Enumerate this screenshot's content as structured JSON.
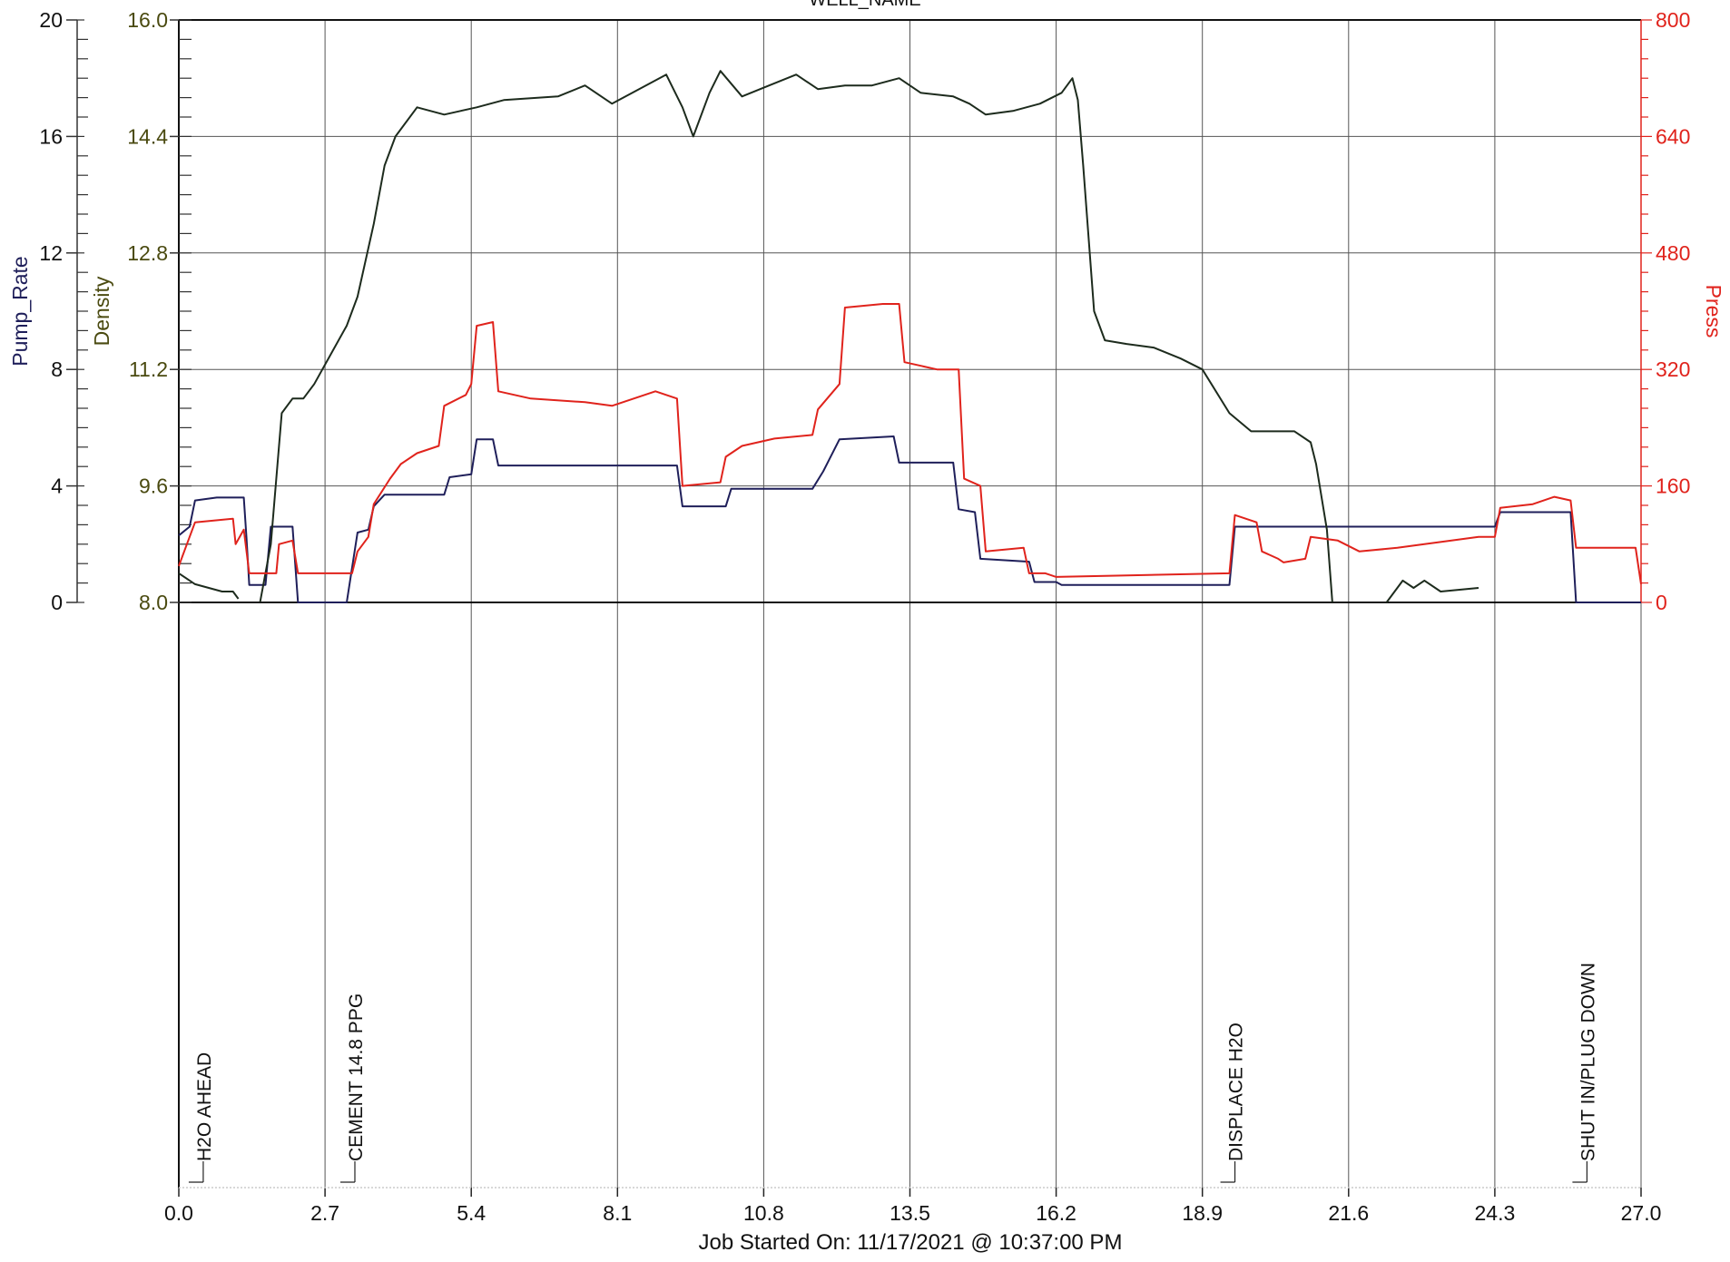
{
  "chart_data": {
    "type": "line",
    "title": "WELL_NAME",
    "xlabel": "Job Started On: 11/17/2021 @ 10:37:00 PM",
    "x_ticks": [
      "0.0",
      "2.7",
      "5.4",
      "8.1",
      "10.8",
      "13.5",
      "16.2",
      "18.9",
      "21.6",
      "24.3",
      "27.0"
    ],
    "xlim": [
      0,
      27
    ],
    "colors": {
      "pump_rate": "#1f1f5a",
      "density": "#1d2b1d",
      "press": "#e0231c",
      "density_axis": "#4a4a10"
    },
    "axes": {
      "pump_rate": {
        "label": "Pump_Rate",
        "ticks": [
          "0",
          "4",
          "8",
          "12",
          "16",
          "20"
        ],
        "ylim": [
          0,
          20
        ]
      },
      "density": {
        "label": "Density",
        "ticks": [
          "8.0",
          "9.6",
          "11.2",
          "12.8",
          "14.4",
          "16.0"
        ],
        "ylim": [
          8.0,
          16.0
        ]
      },
      "press": {
        "label": "Press",
        "ticks": [
          "0",
          "160",
          "320",
          "480",
          "640",
          "800"
        ],
        "ylim": [
          0,
          800
        ]
      }
    },
    "series": [
      {
        "name": "Pump_Rate",
        "axis": "pump_rate",
        "color": "#1f1f5a",
        "points": [
          [
            0,
            2.3
          ],
          [
            0.2,
            2.6
          ],
          [
            0.3,
            3.5
          ],
          [
            0.7,
            3.6
          ],
          [
            1.2,
            3.6
          ],
          [
            1.25,
            2.2
          ],
          [
            1.3,
            0.6
          ],
          [
            1.6,
            0.6
          ],
          [
            1.7,
            2.6
          ],
          [
            2.1,
            2.6
          ],
          [
            2.2,
            0
          ],
          [
            3.1,
            0
          ],
          [
            3.3,
            2.4
          ],
          [
            3.5,
            2.5
          ],
          [
            3.6,
            3.3
          ],
          [
            3.8,
            3.7
          ],
          [
            4.9,
            3.7
          ],
          [
            5.0,
            4.3
          ],
          [
            5.4,
            4.4
          ],
          [
            5.5,
            5.6
          ],
          [
            5.8,
            5.6
          ],
          [
            5.9,
            4.7
          ],
          [
            9.2,
            4.7
          ],
          [
            9.3,
            3.3
          ],
          [
            10.1,
            3.3
          ],
          [
            10.2,
            3.9
          ],
          [
            11.7,
            3.9
          ],
          [
            11.9,
            4.5
          ],
          [
            12.2,
            5.6
          ],
          [
            13.2,
            5.7
          ],
          [
            13.3,
            4.8
          ],
          [
            14.3,
            4.8
          ],
          [
            14.4,
            3.2
          ],
          [
            14.7,
            3.1
          ],
          [
            14.8,
            1.5
          ],
          [
            15.7,
            1.4
          ],
          [
            15.8,
            0.7
          ],
          [
            16.2,
            0.7
          ],
          [
            16.3,
            0.6
          ],
          [
            19.4,
            0.6
          ],
          [
            19.5,
            2.6
          ],
          [
            24.3,
            2.6
          ],
          [
            24.4,
            3.1
          ],
          [
            25.7,
            3.1
          ],
          [
            25.8,
            0
          ],
          [
            27.0,
            0
          ]
        ]
      },
      {
        "name": "Density",
        "axis": "density",
        "color": "#1d2b1d",
        "segments": [
          [
            [
              0,
              8.4
            ],
            [
              0.3,
              8.25
            ],
            [
              0.8,
              8.15
            ],
            [
              1.0,
              8.15
            ],
            [
              1.1,
              8.05
            ]
          ],
          [
            [
              1.5,
              8.0
            ],
            [
              1.7,
              8.8
            ],
            [
              1.9,
              10.6
            ],
            [
              2.1,
              10.8
            ],
            [
              2.3,
              10.8
            ],
            [
              2.5,
              11.0
            ],
            [
              2.8,
              11.4
            ],
            [
              3.1,
              11.8
            ],
            [
              3.3,
              12.2
            ],
            [
              3.6,
              13.2
            ],
            [
              3.8,
              14.0
            ],
            [
              4.0,
              14.4
            ],
            [
              4.4,
              14.8
            ],
            [
              4.9,
              14.7
            ],
            [
              5.2,
              14.75
            ],
            [
              5.5,
              14.8
            ],
            [
              6.0,
              14.9
            ],
            [
              7.0,
              14.95
            ],
            [
              7.5,
              15.1
            ],
            [
              8.0,
              14.85
            ],
            [
              9.0,
              15.25
            ],
            [
              9.3,
              14.8
            ],
            [
              9.5,
              14.4
            ],
            [
              9.8,
              15.0
            ],
            [
              10.0,
              15.3
            ],
            [
              10.4,
              14.95
            ],
            [
              10.9,
              15.1
            ],
            [
              11.4,
              15.25
            ],
            [
              11.8,
              15.05
            ],
            [
              12.3,
              15.1
            ],
            [
              12.8,
              15.1
            ],
            [
              13.3,
              15.2
            ],
            [
              13.7,
              15.0
            ],
            [
              14.3,
              14.95
            ],
            [
              14.6,
              14.85
            ],
            [
              14.9,
              14.7
            ],
            [
              15.4,
              14.75
            ],
            [
              15.9,
              14.85
            ],
            [
              16.3,
              15.0
            ],
            [
              16.5,
              15.2
            ],
            [
              16.6,
              14.9
            ],
            [
              16.7,
              14.0
            ],
            [
              16.9,
              12.0
            ],
            [
              17.1,
              11.6
            ],
            [
              17.5,
              11.55
            ],
            [
              18.0,
              11.5
            ],
            [
              18.5,
              11.35
            ],
            [
              18.9,
              11.2
            ],
            [
              19.4,
              10.6
            ],
            [
              19.8,
              10.35
            ],
            [
              20.3,
              10.35
            ],
            [
              20.6,
              10.35
            ],
            [
              20.9,
              10.2
            ],
            [
              21.0,
              9.9
            ],
            [
              21.2,
              9.0
            ],
            [
              21.3,
              8.0
            ]
          ],
          [
            [
              22.3,
              8.0
            ],
            [
              22.6,
              8.3
            ],
            [
              22.8,
              8.2
            ],
            [
              23.0,
              8.3
            ],
            [
              23.3,
              8.15
            ],
            [
              24.0,
              8.2
            ]
          ]
        ]
      },
      {
        "name": "Press",
        "axis": "press",
        "color": "#e0231c",
        "points": [
          [
            0,
            50
          ],
          [
            0.15,
            80
          ],
          [
            0.3,
            110
          ],
          [
            1.0,
            115
          ],
          [
            1.05,
            80
          ],
          [
            1.2,
            100
          ],
          [
            1.3,
            40
          ],
          [
            1.8,
            40
          ],
          [
            1.85,
            80
          ],
          [
            2.1,
            85
          ],
          [
            2.2,
            40
          ],
          [
            3.2,
            40
          ],
          [
            3.3,
            70
          ],
          [
            3.5,
            90
          ],
          [
            3.6,
            135
          ],
          [
            3.9,
            170
          ],
          [
            4.1,
            190
          ],
          [
            4.4,
            205
          ],
          [
            4.8,
            215
          ],
          [
            4.9,
            270
          ],
          [
            5.3,
            285
          ],
          [
            5.4,
            300
          ],
          [
            5.5,
            380
          ],
          [
            5.8,
            385
          ],
          [
            5.9,
            290
          ],
          [
            6.5,
            280
          ],
          [
            7.5,
            275
          ],
          [
            8.0,
            270
          ],
          [
            8.8,
            290
          ],
          [
            9.2,
            280
          ],
          [
            9.3,
            160
          ],
          [
            10.0,
            165
          ],
          [
            10.1,
            200
          ],
          [
            10.4,
            215
          ],
          [
            11.0,
            225
          ],
          [
            11.7,
            230
          ],
          [
            11.8,
            265
          ],
          [
            12.2,
            300
          ],
          [
            12.3,
            405
          ],
          [
            13.0,
            410
          ],
          [
            13.3,
            410
          ],
          [
            13.4,
            330
          ],
          [
            14.0,
            320
          ],
          [
            14.4,
            320
          ],
          [
            14.5,
            170
          ],
          [
            14.8,
            160
          ],
          [
            14.9,
            70
          ],
          [
            15.6,
            75
          ],
          [
            15.7,
            40
          ],
          [
            16.0,
            40
          ],
          [
            16.2,
            35
          ],
          [
            19.4,
            40
          ],
          [
            19.5,
            120
          ],
          [
            19.9,
            110
          ],
          [
            20.0,
            70
          ],
          [
            20.3,
            60
          ],
          [
            20.4,
            55
          ],
          [
            20.8,
            60
          ],
          [
            20.9,
            90
          ],
          [
            21.4,
            85
          ],
          [
            21.8,
            70
          ],
          [
            22.5,
            75
          ],
          [
            23.0,
            80
          ],
          [
            23.5,
            85
          ],
          [
            24.0,
            90
          ],
          [
            24.3,
            90
          ],
          [
            24.4,
            130
          ],
          [
            25.0,
            135
          ],
          [
            25.4,
            145
          ],
          [
            25.7,
            140
          ],
          [
            25.8,
            75
          ],
          [
            26.9,
            75
          ],
          [
            27.0,
            25
          ]
        ]
      }
    ],
    "annotations": [
      {
        "label": "H2O AHEAD",
        "x": 0.25
      },
      {
        "label": "CEMENT 14.8 PPG",
        "x": 3.05
      },
      {
        "label": "DISPLACE H2O",
        "x": 19.3
      },
      {
        "label": "SHUT IN/PLUG DOWN",
        "x": 25.8
      }
    ],
    "grid": true
  }
}
